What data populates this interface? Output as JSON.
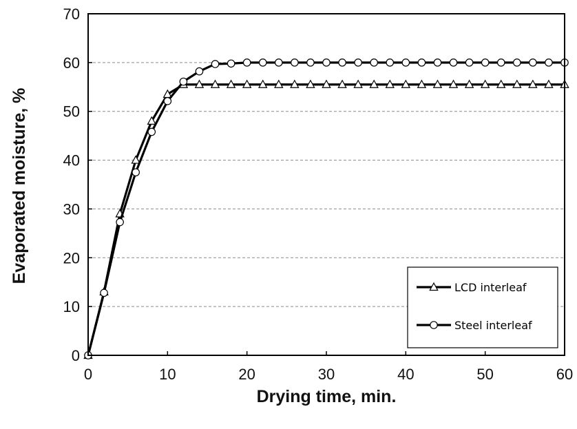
{
  "chart_data": {
    "type": "line",
    "title": "",
    "xlabel": "Drying time, min.",
    "ylabel": "Evaporated moisture, %",
    "xlim": [
      0,
      60
    ],
    "ylim": [
      0,
      70
    ],
    "xticks": [
      0,
      10,
      20,
      30,
      40,
      50,
      60
    ],
    "yticks": [
      0,
      10,
      20,
      30,
      40,
      50,
      60,
      70
    ],
    "grid": "horizontal dashed",
    "legend_position": "bottom-right",
    "x": [
      0,
      2,
      4,
      6,
      8,
      10,
      12,
      14,
      16,
      18,
      20,
      22,
      24,
      26,
      28,
      30,
      32,
      34,
      36,
      38,
      40,
      42,
      44,
      46,
      48,
      50,
      52,
      54,
      56,
      58,
      60
    ],
    "series": [
      {
        "name": "LCD interleaf",
        "marker": "triangle",
        "values": [
          0,
          13,
          29,
          40,
          48,
          53.5,
          55.5,
          55.5,
          55.5,
          55.5,
          55.5,
          55.5,
          55.5,
          55.5,
          55.5,
          55.5,
          55.5,
          55.5,
          55.5,
          55.5,
          55.5,
          55.5,
          55.5,
          55.5,
          55.5,
          55.5,
          55.5,
          55.5,
          55.5,
          55.5,
          55.5
        ]
      },
      {
        "name": "Steel interleaf",
        "marker": "circle",
        "values": [
          0,
          12.8,
          27.3,
          37.5,
          45.8,
          52.1,
          56.1,
          58.2,
          59.7,
          59.8,
          60,
          60,
          60,
          60,
          60,
          60,
          60,
          60,
          60,
          60,
          60,
          60,
          60,
          60,
          60,
          60,
          60,
          60,
          60,
          60,
          60
        ]
      }
    ]
  }
}
